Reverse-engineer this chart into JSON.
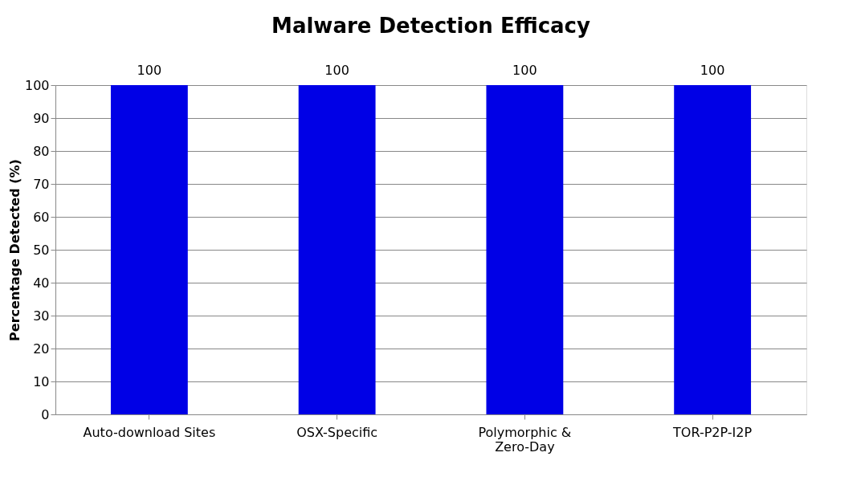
{
  "chart_data": {
    "type": "bar",
    "title": "Malware Detection Efficacy",
    "ylabel": "Percentage Detected (%)",
    "categories": [
      "Auto-download Sites",
      "OSX-Specific",
      "Polymorphic & Zero-Day",
      "TOR-P2P-I2P"
    ],
    "values": [
      100,
      100,
      100,
      100
    ],
    "color": "#0000e6",
    "ylim": [
      0,
      100
    ],
    "yticks": [
      0,
      10,
      20,
      30,
      40,
      50,
      60,
      70,
      80,
      90,
      100
    ],
    "grid": "y",
    "data_labels": true
  }
}
